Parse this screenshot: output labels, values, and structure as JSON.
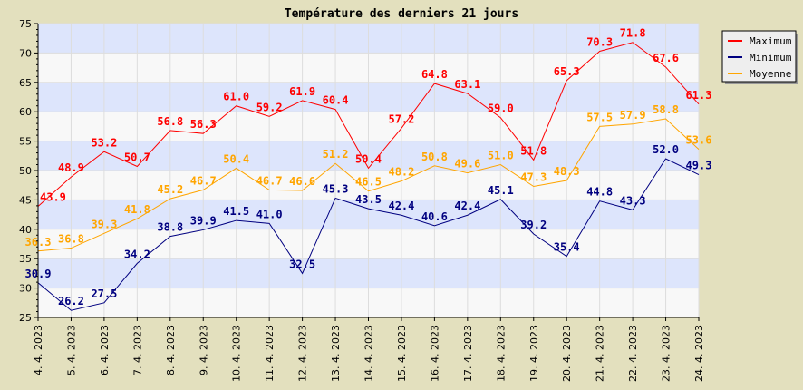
{
  "chart_data": {
    "type": "line",
    "title": "Température des derniers 21 jours",
    "xlabel": "",
    "ylabel": "",
    "ylim": [
      25,
      75
    ],
    "yticks": [
      25,
      30,
      35,
      40,
      45,
      50,
      55,
      60,
      65,
      70,
      75
    ],
    "grid": true,
    "legend_placement": "top-right",
    "categories": [
      "4. 4. 2023",
      "5. 4. 2023",
      "6. 4. 2023",
      "7. 4. 2023",
      "8. 4. 2023",
      "9. 4. 2023",
      "10. 4. 2023",
      "11. 4. 2023",
      "12. 4. 2023",
      "13. 4. 2023",
      "14. 4. 2023",
      "15. 4. 2023",
      "16. 4. 2023",
      "17. 4. 2023",
      "18. 4. 2023",
      "19. 4. 2023",
      "20. 4. 2023",
      "21. 4. 2023",
      "22. 4. 2023",
      "23. 4. 2023",
      "24. 4. 2023"
    ],
    "series": [
      {
        "name": "Maximum",
        "color": "#ff0000",
        "values": [
          43.9,
          48.9,
          53.2,
          50.7,
          56.8,
          56.3,
          61.0,
          59.2,
          61.9,
          60.4,
          50.4,
          57.2,
          64.8,
          63.1,
          59.0,
          51.8,
          65.3,
          70.3,
          71.8,
          67.6,
          61.3
        ]
      },
      {
        "name": "Minimum",
        "color": "#000080",
        "values": [
          30.9,
          26.2,
          27.5,
          34.2,
          38.8,
          39.9,
          41.5,
          41.0,
          32.5,
          45.3,
          43.5,
          42.4,
          40.6,
          42.4,
          45.1,
          39.2,
          35.4,
          44.8,
          43.3,
          52.0,
          49.3
        ]
      },
      {
        "name": "Moyenne",
        "color": "#ffa500",
        "values": [
          36.3,
          36.8,
          39.3,
          41.8,
          45.2,
          46.7,
          50.4,
          46.7,
          46.6,
          51.2,
          46.5,
          48.2,
          50.8,
          49.6,
          51.0,
          47.3,
          48.3,
          57.5,
          57.9,
          58.8,
          53.6
        ]
      }
    ],
    "colors": {
      "band_a": "#dde5fc",
      "band_b": "#f8f8f8",
      "background": "#e3e0be",
      "grid": "#dddddd"
    }
  }
}
